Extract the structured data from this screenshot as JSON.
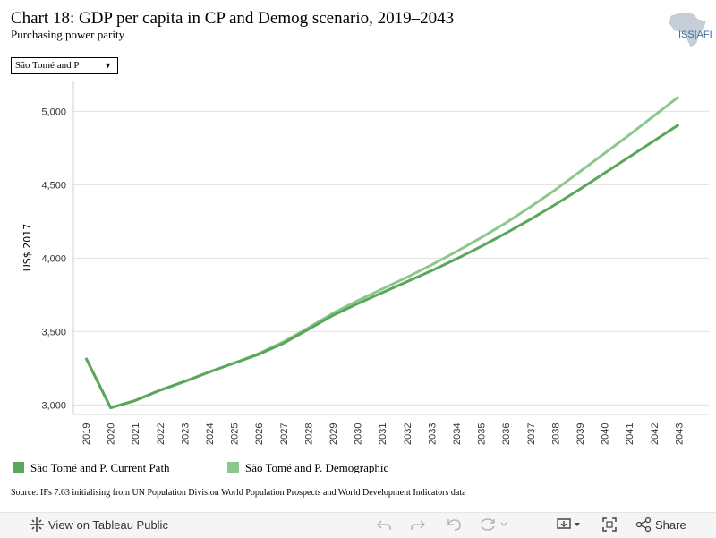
{
  "header": {
    "title": "Chart 18: GDP per capita in CP and Demog scenario, 2019–2043",
    "subtitle": "Purchasing power parity",
    "logo_text": "ISS|AFI"
  },
  "filter": {
    "selected": "São Tomé and P"
  },
  "chart_data": {
    "type": "line",
    "title": "Chart 18: GDP per capita in CP and Demog scenario, 2019–2043",
    "subtitle": "Purchasing power parity",
    "ylabel": "US$ 2017",
    "xlabel": "",
    "ylim": [
      2935,
      5210
    ],
    "yticks": [
      3000,
      3500,
      4000,
      4500,
      5000
    ],
    "ytick_labels": [
      "3,000",
      "3,500",
      "4,000",
      "4,500",
      "5,000"
    ],
    "x": [
      "2019",
      "2020",
      "2021",
      "2022",
      "2023",
      "2024",
      "2025",
      "2026",
      "2027",
      "2028",
      "2029",
      "2030",
      "2031",
      "2032",
      "2033",
      "2034",
      "2035",
      "2036",
      "2037",
      "2038",
      "2039",
      "2040",
      "2041",
      "2042",
      "2043"
    ],
    "grid": true,
    "legend_position": "bottom",
    "series": [
      {
        "name": "São Tomé and P. Current Path",
        "color": "#59a75b",
        "values": [
          3320,
          2980,
          3030,
          3100,
          3160,
          3225,
          3285,
          3345,
          3420,
          3515,
          3610,
          3690,
          3765,
          3840,
          3915,
          3995,
          4080,
          4170,
          4265,
          4365,
          4470,
          4580,
          4690,
          4800,
          4910
        ]
      },
      {
        "name": "São Tomé and P. Demographic",
        "color": "#8cc78e",
        "values": [
          3320,
          2980,
          3030,
          3100,
          3160,
          3225,
          3285,
          3350,
          3430,
          3525,
          3625,
          3710,
          3790,
          3870,
          3955,
          4045,
          4140,
          4240,
          4350,
          4465,
          4590,
          4715,
          4840,
          4970,
          5100
        ]
      }
    ]
  },
  "source": "Source: IFs 7.63 initialising from UN Population Division World Population Prospects and World Development Indicators data",
  "toolbar": {
    "view_label": "View on Tableau Public",
    "share_label": "Share"
  }
}
